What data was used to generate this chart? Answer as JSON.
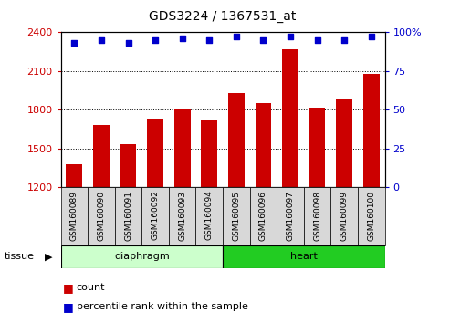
{
  "title": "GDS3224 / 1367531_at",
  "samples": [
    "GSM160089",
    "GSM160090",
    "GSM160091",
    "GSM160092",
    "GSM160093",
    "GSM160094",
    "GSM160095",
    "GSM160096",
    "GSM160097",
    "GSM160098",
    "GSM160099",
    "GSM160100"
  ],
  "counts": [
    1380,
    1680,
    1535,
    1730,
    1800,
    1720,
    1930,
    1850,
    2270,
    1820,
    1890,
    2080
  ],
  "percentiles": [
    93,
    95,
    93,
    95,
    96,
    95,
    97,
    95,
    97,
    95,
    95,
    97
  ],
  "ylim_left": [
    1200,
    2400
  ],
  "ylim_right": [
    0,
    100
  ],
  "yticks_left": [
    1200,
    1500,
    1800,
    2100,
    2400
  ],
  "yticks_right": [
    0,
    25,
    50,
    75,
    100
  ],
  "bar_color": "#cc0000",
  "dot_color": "#0000cc",
  "bar_width": 0.6,
  "groups": [
    {
      "label": "diaphragm",
      "start": 0,
      "end": 5,
      "light_color": "#ccffcc",
      "dark_color": "#66dd66"
    },
    {
      "label": "heart",
      "start": 6,
      "end": 11,
      "light_color": "#66ee66",
      "dark_color": "#22cc22"
    }
  ],
  "tissue_label": "tissue",
  "legend_count_label": "count",
  "legend_pct_label": "percentile rank within the sample",
  "tick_label_color_left": "#cc0000",
  "tick_label_color_right": "#0000cc",
  "title_color": "#000000",
  "xticklabel_bg": "#d8d8d8",
  "grid_linestyle": "dotted"
}
